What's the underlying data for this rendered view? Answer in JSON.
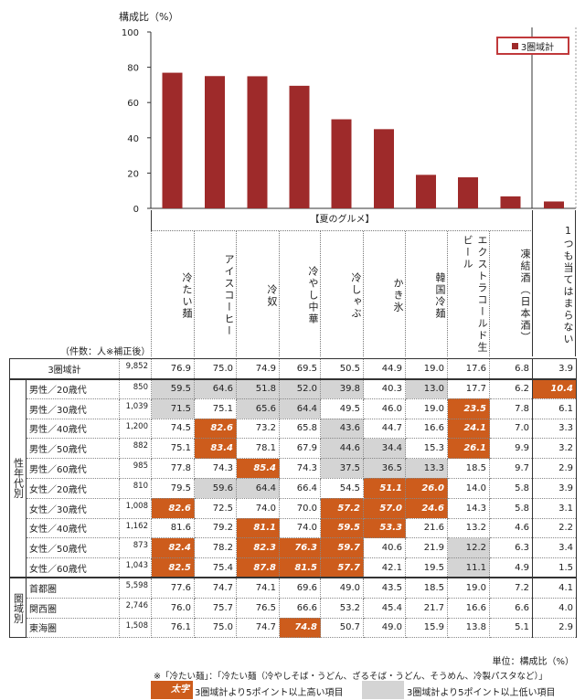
{
  "chart_data": {
    "type": "bar",
    "ylabel": "構成比（%）",
    "ylim": [
      0,
      100
    ],
    "yticks": [
      0,
      20,
      40,
      60,
      80,
      100
    ],
    "legend": "3圏域計",
    "legend_position": "top-right",
    "group_label": "【夏のグルメ】",
    "categories": [
      "冷たい麺",
      "アイスコーヒー",
      "冷奴",
      "冷やし中華",
      "冷しゃぶ",
      "かき氷",
      "韓国冷麺",
      "エクストラコールド生ビール",
      "凍結酒（日本酒）",
      "1つも当てはまらない"
    ],
    "series": [
      {
        "name": "3圏域計",
        "values": [
          76.9,
          75.0,
          74.9,
          69.5,
          50.5,
          44.9,
          19.0,
          17.6,
          6.8,
          3.9
        ]
      }
    ],
    "bar_color": "#9e2a2a"
  },
  "table": {
    "count_caption": "（件数：人※補正後）",
    "total": {
      "label": "3圏域計",
      "count": "9,852",
      "values": [
        "76.9",
        "75.0",
        "74.9",
        "69.5",
        "50.5",
        "44.9",
        "19.0",
        "17.6",
        "6.8",
        "3.9"
      ]
    },
    "groups": [
      {
        "label": "性年代別",
        "rows": [
          {
            "label": "男性／20歳代",
            "count": "850",
            "values": [
              "59.5",
              "64.6",
              "51.8",
              "52.0",
              "39.8",
              "40.3",
              "13.0",
              "17.7",
              "6.2",
              "10.4"
            ],
            "marks": "lllll.l..h"
          },
          {
            "label": "男性／30歳代",
            "count": "1,039",
            "values": [
              "71.5",
              "75.1",
              "65.6",
              "64.4",
              "49.5",
              "46.0",
              "19.0",
              "23.5",
              "7.8",
              "6.1"
            ],
            "marks": "l.ll...h.."
          },
          {
            "label": "男性／40歳代",
            "count": "1,200",
            "values": [
              "74.5",
              "82.6",
              "73.2",
              "65.8",
              "43.6",
              "44.7",
              "16.6",
              "24.1",
              "7.0",
              "3.3"
            ],
            "marks": ".h..l..h.."
          },
          {
            "label": "男性／50歳代",
            "count": "882",
            "values": [
              "75.1",
              "83.4",
              "78.1",
              "67.9",
              "44.6",
              "34.4",
              "15.3",
              "26.1",
              "9.9",
              "3.2"
            ],
            "marks": ".h..ll.h.."
          },
          {
            "label": "男性／60歳代",
            "count": "985",
            "values": [
              "77.8",
              "74.3",
              "85.4",
              "74.3",
              "37.5",
              "36.5",
              "13.3",
              "18.5",
              "9.7",
              "2.9"
            ],
            "marks": "..h.lll..."
          },
          {
            "label": "女性／20歳代",
            "count": "810",
            "values": [
              "79.5",
              "59.6",
              "64.4",
              "66.4",
              "54.5",
              "51.1",
              "26.0",
              "14.0",
              "5.8",
              "3.9"
            ],
            "marks": ".ll..hh..."
          },
          {
            "label": "女性／30歳代",
            "count": "1,008",
            "values": [
              "82.6",
              "72.5",
              "74.0",
              "70.0",
              "57.2",
              "57.0",
              "24.6",
              "14.3",
              "5.8",
              "3.1"
            ],
            "marks": "h...hhh..."
          },
          {
            "label": "女性／40歳代",
            "count": "1,162",
            "values": [
              "81.6",
              "79.2",
              "81.1",
              "74.0",
              "59.5",
              "53.3",
              "21.6",
              "13.2",
              "4.6",
              "2.2"
            ],
            "marks": "..h.hh...."
          },
          {
            "label": "女性／50歳代",
            "count": "873",
            "values": [
              "82.4",
              "78.2",
              "82.3",
              "76.3",
              "59.7",
              "40.6",
              "21.9",
              "12.2",
              "6.3",
              "3.4"
            ],
            "marks": "h.hhh..l.."
          },
          {
            "label": "女性／60歳代",
            "count": "1,043",
            "values": [
              "82.5",
              "75.4",
              "87.8",
              "81.5",
              "57.7",
              "42.1",
              "19.5",
              "11.1",
              "4.9",
              "1.5"
            ],
            "marks": "h.hhh..l.."
          }
        ]
      },
      {
        "label": "圏域別",
        "rows": [
          {
            "label": "首都圏",
            "count": "5,598",
            "values": [
              "77.6",
              "74.7",
              "74.1",
              "69.6",
              "49.0",
              "43.5",
              "18.5",
              "19.0",
              "7.2",
              "4.1"
            ],
            "marks": ".........."
          },
          {
            "label": "関西圏",
            "count": "2,746",
            "values": [
              "76.0",
              "75.7",
              "76.5",
              "66.6",
              "53.2",
              "45.4",
              "21.7",
              "16.6",
              "6.6",
              "4.0"
            ],
            "marks": ".........."
          },
          {
            "label": "東海圏",
            "count": "1,508",
            "values": [
              "76.1",
              "75.0",
              "74.7",
              "74.8",
              "50.7",
              "49.0",
              "15.9",
              "13.8",
              "5.1",
              "2.9"
            ],
            "marks": "...h......"
          }
        ]
      }
    ],
    "colors": {
      "high": "#cd5c1c",
      "low": "#d4d4d4"
    }
  },
  "footer": {
    "unit": "単位：構成比（%）",
    "note": "※「冷たい麺」：「冷たい麺（冷やしそば・うどん、ざるそば・うどん、そうめん、冷製パスタなど）」",
    "key_high_sample": "太字",
    "key_high_text": "3圏域計より5ポイント以上高い項目",
    "key_low_text": "3圏域計より5ポイント以上低い項目"
  }
}
